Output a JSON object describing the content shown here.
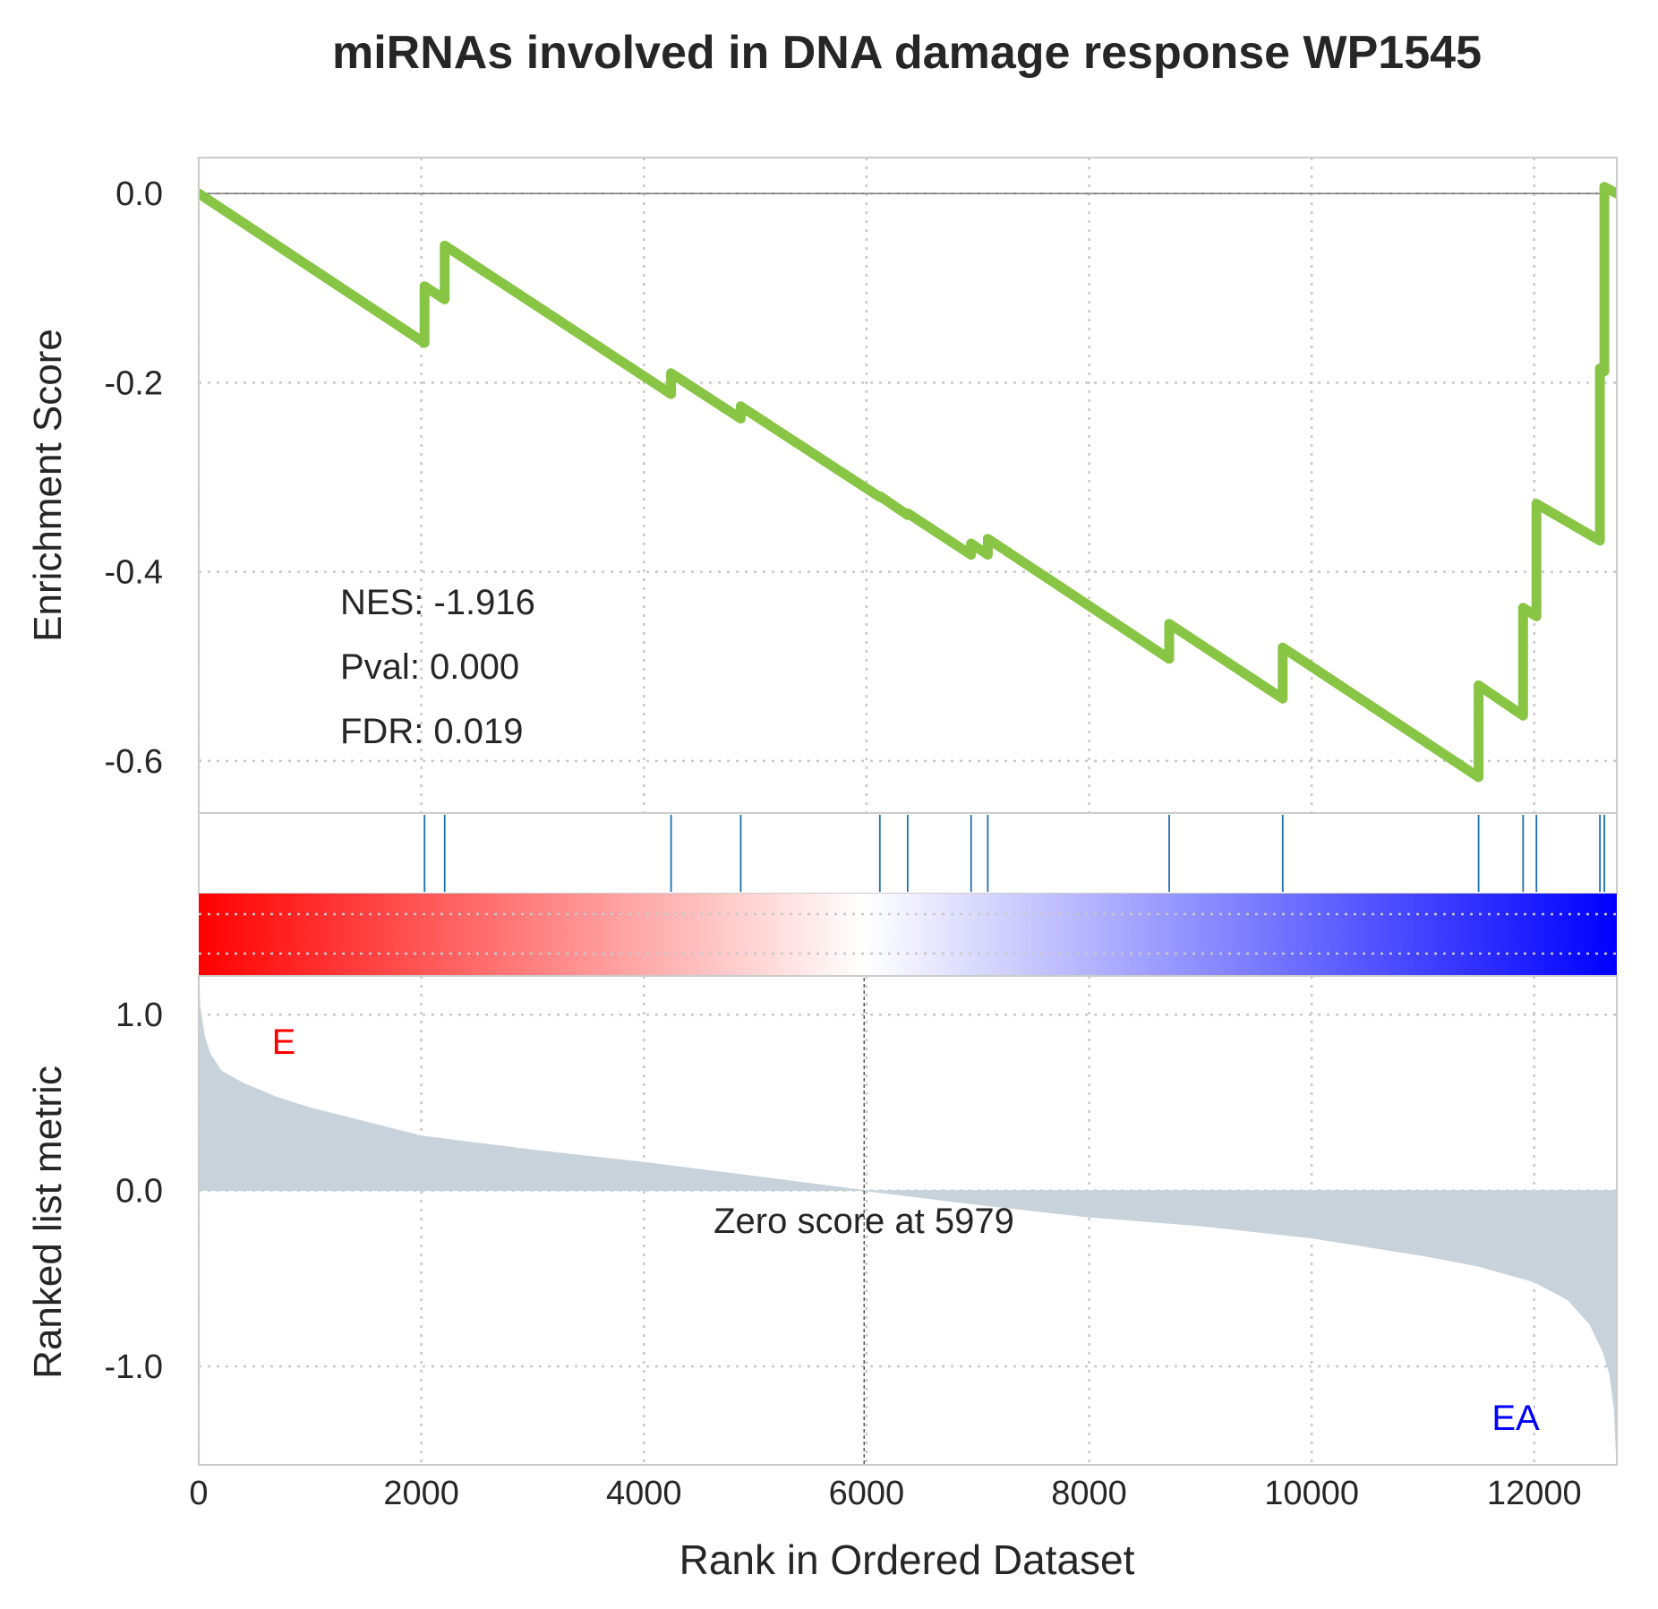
{
  "chart_data": {
    "type": "line",
    "title": "miRNAs involved in DNA damage response WP1545",
    "xlabel": "Rank in Ordered Dataset",
    "x_ticks": [
      0,
      2000,
      4000,
      6000,
      8000,
      10000,
      12000
    ],
    "xlim": [
      0,
      12742
    ],
    "grid": true,
    "enrichment_plot": {
      "ylabel": "Enrichment Score",
      "ylim": [
        -0.655,
        0.038
      ],
      "y_ticks": [
        0.0,
        -0.2,
        -0.4,
        -0.6
      ],
      "y_tick_labels": [
        "0.0",
        "-0.2",
        "-0.4",
        "-0.6"
      ],
      "line_color": "#88c544",
      "series": [
        {
          "points": [
            [
              0,
              0.0
            ],
            [
              2029,
              -0.158
            ],
            [
              2029,
              -0.098
            ],
            [
              2210,
              -0.112
            ],
            [
              2210,
              -0.055
            ],
            [
              4244,
              -0.212
            ],
            [
              4244,
              -0.19
            ],
            [
              4870,
              -0.238
            ],
            [
              4870,
              -0.225
            ],
            [
              6120,
              -0.321
            ],
            [
              6120,
              -0.32
            ],
            [
              6370,
              -0.34
            ],
            [
              6370,
              -0.338
            ],
            [
              6940,
              -0.382
            ],
            [
              6940,
              -0.37
            ],
            [
              7090,
              -0.382
            ],
            [
              7090,
              -0.365
            ],
            [
              8720,
              -0.492
            ],
            [
              8720,
              -0.455
            ],
            [
              9740,
              -0.534
            ],
            [
              9740,
              -0.48
            ],
            [
              11500,
              -0.617
            ],
            [
              11500,
              -0.52
            ],
            [
              11900,
              -0.552
            ],
            [
              11900,
              -0.438
            ],
            [
              12020,
              -0.447
            ],
            [
              12020,
              -0.328
            ],
            [
              12590,
              -0.367
            ],
            [
              12590,
              -0.185
            ],
            [
              12630,
              -0.188
            ],
            [
              12630,
              0.007
            ],
            [
              12742,
              0.0
            ]
          ]
        }
      ],
      "annotations": [
        "NES: -1.916",
        "Pval: 0.000",
        "FDR: 0.019"
      ]
    },
    "hit_ranks": [
      2029,
      2210,
      4244,
      4870,
      6120,
      6370,
      6940,
      7090,
      8720,
      9740,
      11500,
      11900,
      12020,
      12590,
      12630
    ],
    "hit_color": "#1f6fad",
    "colorbar": {
      "start_color": "#ff0000",
      "mid_color": "#ffffff",
      "end_color": "#0000ff"
    },
    "ranked_metric_plot": {
      "ylabel": "Ranked list metric",
      "ylim": [
        -1.56,
        1.22
      ],
      "y_ticks": [
        1.0,
        0.0,
        -1.0
      ],
      "y_tick_labels": [
        "1.0",
        "0.0",
        "-1.0"
      ],
      "fill_color": "#c8d2da",
      "curve": [
        [
          0,
          1.2
        ],
        [
          10,
          1.05
        ],
        [
          50,
          0.88
        ],
        [
          100,
          0.78
        ],
        [
          200,
          0.68
        ],
        [
          400,
          0.61
        ],
        [
          700,
          0.53
        ],
        [
          1000,
          0.47
        ],
        [
          1500,
          0.39
        ],
        [
          2000,
          0.31
        ],
        [
          2500,
          0.27
        ],
        [
          3000,
          0.23
        ],
        [
          4000,
          0.16
        ],
        [
          5000,
          0.08
        ],
        [
          5979,
          0.0
        ],
        [
          7000,
          -0.08
        ],
        [
          8000,
          -0.15
        ],
        [
          9000,
          -0.2
        ],
        [
          10000,
          -0.27
        ],
        [
          11000,
          -0.37
        ],
        [
          11500,
          -0.43
        ],
        [
          12000,
          -0.52
        ],
        [
          12300,
          -0.62
        ],
        [
          12500,
          -0.76
        ],
        [
          12620,
          -0.92
        ],
        [
          12680,
          -1.05
        ],
        [
          12720,
          -1.25
        ],
        [
          12742,
          -1.55
        ]
      ],
      "zero_cross": 5979,
      "zero_label": "Zero score at 5979",
      "left_label": "E",
      "left_label_color": "#ff0000",
      "right_label": "EA",
      "right_label_color": "#0000ff"
    }
  }
}
